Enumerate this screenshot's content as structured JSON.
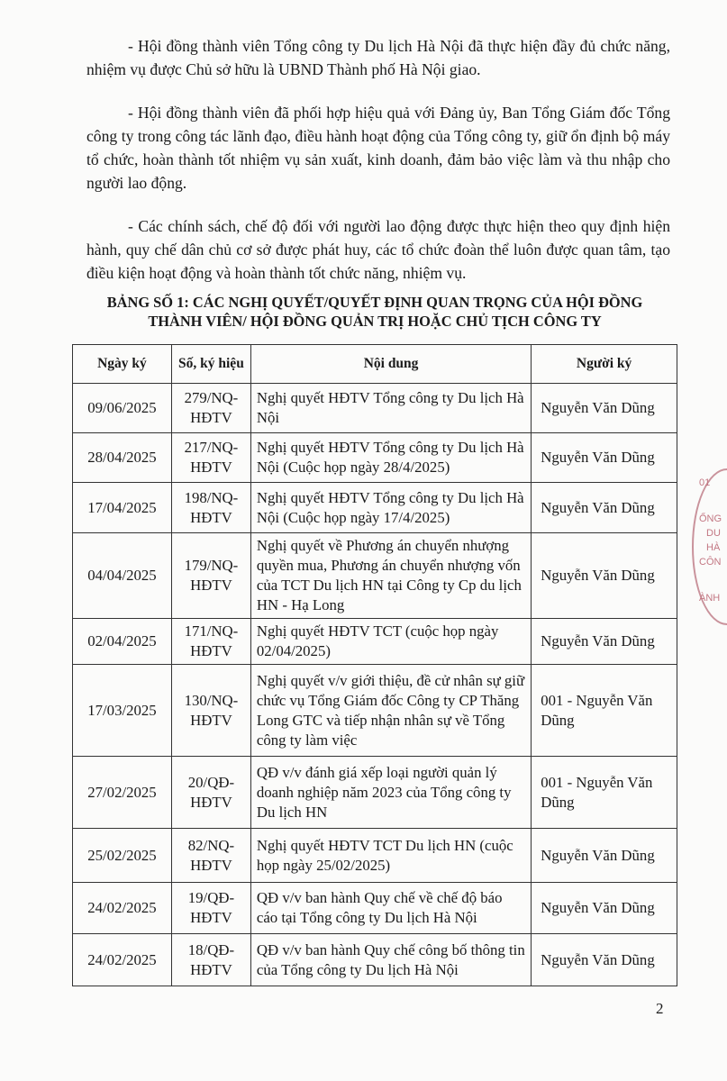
{
  "paragraphs": [
    "- Hội đồng thành viên Tổng công ty Du lịch Hà Nội đã thực hiện đầy đủ chức năng, nhiệm vụ được Chủ sở hữu là UBND Thành phố Hà Nội giao.",
    "- Hội đồng thành viên đã phối hợp hiệu quả với Đảng ủy, Ban Tổng Giám đốc Tổng công ty trong công tác lãnh đạo, điều hành hoạt động của Tổng công ty, giữ ổn định bộ máy tổ chức, hoàn thành tốt nhiệm vụ sản xuất, kinh doanh, đảm bảo việc làm và thu nhập cho người lao động.",
    "- Các chính sách, chế độ đối với người lao động được thực hiện theo quy định hiện hành, quy chế dân chủ cơ sở được phát huy, các tổ chức đoàn thể luôn được quan tâm, tạo điều kiện hoạt động và hoàn thành tốt chức năng, nhiệm vụ."
  ],
  "table_title_line1": "BẢNG SỐ 1: CÁC NGHỊ QUYẾT/QUYẾT ĐỊNH QUAN TRỌNG CỦA HỘI ĐỒNG",
  "table_title_line2": "THÀNH VIÊN/ HỘI ĐỒNG QUẢN TRỊ HOẶC CHỦ TỊCH CÔNG TY",
  "headers": [
    "Ngày ký",
    "Số, ký hiệu",
    "Nội dung",
    "Người ký"
  ],
  "rows": [
    [
      "09/06/2025",
      "279/NQ-HĐTV",
      "Nghị quyết HĐTV Tổng công ty Du lịch Hà Nội",
      "Nguyễn Văn Dũng"
    ],
    [
      "28/04/2025",
      "217/NQ-HĐTV",
      "Nghị quyết HĐTV Tổng công ty Du lịch Hà Nội (Cuộc họp ngày 28/4/2025)",
      "Nguyễn Văn Dũng"
    ],
    [
      "17/04/2025",
      "198/NQ-HĐTV",
      "Nghị quyết HĐTV Tổng công ty Du lịch Hà Nội (Cuộc họp ngày 17/4/2025)",
      "Nguyễn Văn Dũng"
    ],
    [
      "04/04/2025",
      "179/NQ-HĐTV",
      "Nghị quyết về Phương án chuyển nhượng quyền mua, Phương án chuyển nhượng vốn của TCT Du lịch HN tại Công ty Cp du lịch HN - Hạ Long",
      "Nguyễn Văn Dũng"
    ],
    [
      "02/04/2025",
      "171/NQ-HĐTV",
      "Nghị quyết HĐTV TCT (cuộc họp ngày 02/04/2025)",
      "Nguyễn Văn Dũng"
    ],
    [
      "17/03/2025",
      "130/NQ-HĐTV",
      "Nghị quyết v/v giới thiệu, đề cử nhân sự giữ chức vụ Tổng Giám đốc Công ty CP Thăng Long GTC và tiếp nhận nhân sự về Tổng công ty làm việc",
      "001 - Nguyễn Văn Dũng"
    ],
    [
      "27/02/2025",
      "20/QĐ-HĐTV",
      "QĐ v/v đánh giá xếp loại người quản lý doanh nghiệp năm 2023 của Tổng công ty Du lịch HN",
      "001 - Nguyễn Văn Dũng"
    ],
    [
      "25/02/2025",
      "82/NQ-HĐTV",
      "Nghị quyết HĐTV TCT Du lịch HN (cuộc họp ngày 25/02/2025)",
      "Nguyễn Văn Dũng"
    ],
    [
      "24/02/2025",
      "19/QĐ-HĐTV",
      "QĐ v/v ban hành Quy chế về chế độ báo cáo tại Tổng công ty Du lịch Hà Nội",
      "Nguyễn Văn Dũng"
    ],
    [
      "24/02/2025",
      "18/QĐ-HĐTV",
      "QĐ v/v ban hành Quy chế công bố thông tin của Tổng công ty Du lịch Hà Nội",
      "Nguyễn Văn Dũng"
    ]
  ],
  "page_number": "2",
  "stamp_text": [
    "01",
    "ỔNG",
    "DU",
    "HÀ",
    "CÔN",
    "ÀNH"
  ],
  "stamp_color": "#b04a5a"
}
